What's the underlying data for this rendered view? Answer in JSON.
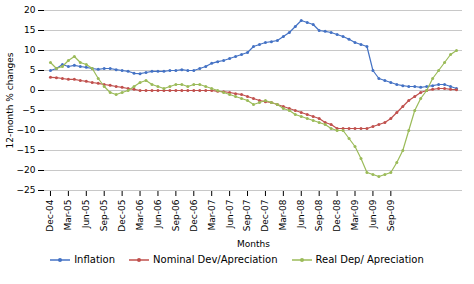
{
  "chart_data": {
    "type": "line",
    "xlabel": "Months",
    "ylabel": "12-month % changes",
    "categories": [
      "Dec-04",
      null,
      null,
      "Mar-05",
      null,
      null,
      "Jun-05",
      null,
      null,
      "Sep-05",
      null,
      null,
      "Dec-05",
      null,
      null,
      "Mar-06",
      null,
      null,
      "Jun-06",
      null,
      null,
      "Sep-06",
      null,
      null,
      "Dec-06",
      null,
      null,
      "Mar-07",
      null,
      null,
      "Jun-07",
      null,
      null,
      "Sep-07",
      null,
      null,
      "Dec-07",
      null,
      null,
      "Mar-08",
      null,
      null,
      "Jun-08",
      null,
      null,
      "Sep-08",
      null,
      null,
      "Dec-08",
      null,
      null,
      "Mar-09",
      null,
      null,
      "Jun-09",
      null,
      null,
      "Sep-09",
      null,
      null,
      null,
      null,
      null,
      null,
      null,
      null,
      null,
      null,
      null
    ],
    "series": [
      {
        "name": "Inflation",
        "color": "#4472C4",
        "marker": "circle",
        "values": [
          5.0,
          5.5,
          6.5,
          6.0,
          6.3,
          6.0,
          5.8,
          5.5,
          5.3,
          5.5,
          5.5,
          5.2,
          5.0,
          4.8,
          4.3,
          4.2,
          4.5,
          4.8,
          4.8,
          4.8,
          5.0,
          5.0,
          5.2,
          5.0,
          5.0,
          5.5,
          6.0,
          6.8,
          7.2,
          7.5,
          8.0,
          8.5,
          9.0,
          9.5,
          11.0,
          11.5,
          12.0,
          12.2,
          12.5,
          13.5,
          14.5,
          16.0,
          17.5,
          17.0,
          16.5,
          15.0,
          14.8,
          14.5,
          14.0,
          13.5,
          12.8,
          12.0,
          11.5,
          11.0,
          5.0,
          3.0,
          2.5,
          2.0,
          1.5,
          1.2,
          1.0,
          1.0,
          0.8,
          1.0,
          1.2,
          1.5,
          1.5,
          1.0,
          0.5
        ]
      },
      {
        "name": "Nominal Dev/Apreciation",
        "color": "#C0504D",
        "marker": "circle",
        "values": [
          3.3,
          3.2,
          3.0,
          2.8,
          2.8,
          2.5,
          2.3,
          2.0,
          1.8,
          1.5,
          1.3,
          1.0,
          0.8,
          0.5,
          0.3,
          0.0,
          0.0,
          0.0,
          0.0,
          0.0,
          0.0,
          0.0,
          0.0,
          0.0,
          0.0,
          0.0,
          0.0,
          0.0,
          -0.2,
          -0.3,
          -0.5,
          -0.8,
          -1.0,
          -1.5,
          -2.0,
          -2.5,
          -2.8,
          -3.0,
          -3.5,
          -4.0,
          -4.5,
          -5.0,
          -5.5,
          -6.0,
          -6.5,
          -7.0,
          -8.0,
          -8.5,
          -9.5,
          -9.5,
          -9.5,
          -9.5,
          -9.5,
          -9.5,
          -9.0,
          -8.5,
          -8.0,
          -7.0,
          -5.5,
          -4.0,
          -2.5,
          -1.5,
          -0.5,
          0.0,
          0.3,
          0.5,
          0.5,
          0.3,
          0.2
        ]
      },
      {
        "name": "Real Dep/ Apreciation",
        "color": "#9BBB59",
        "marker": "circle",
        "values": [
          7.0,
          5.5,
          6.0,
          7.5,
          8.5,
          7.0,
          6.5,
          5.5,
          3.0,
          1.0,
          -0.5,
          -1.0,
          -0.5,
          0.0,
          1.0,
          2.0,
          2.5,
          1.5,
          1.0,
          0.5,
          1.0,
          1.5,
          1.5,
          1.0,
          1.5,
          1.5,
          1.0,
          0.5,
          0.0,
          -0.5,
          -1.0,
          -1.5,
          -2.0,
          -2.5,
          -3.5,
          -3.0,
          -2.5,
          -3.0,
          -3.5,
          -4.5,
          -5.0,
          -6.0,
          -6.5,
          -7.0,
          -7.5,
          -8.0,
          -8.5,
          -9.5,
          -10.0,
          -10.0,
          -12.0,
          -14.0,
          -17.0,
          -20.5,
          -21.0,
          -21.5,
          -21.0,
          -20.5,
          -18.0,
          -15.0,
          -10.0,
          -5.0,
          -2.0,
          0.0,
          3.0,
          5.0,
          7.0,
          9.0,
          10.0
        ]
      }
    ],
    "ylim": [
      -25.0,
      20.0
    ],
    "yticks": [
      -25.0,
      -20.0,
      -15.0,
      -10.0,
      -5.0,
      0.0,
      5.0,
      10.0,
      15.0,
      20.0
    ],
    "grid": true,
    "legend": "bottom"
  }
}
